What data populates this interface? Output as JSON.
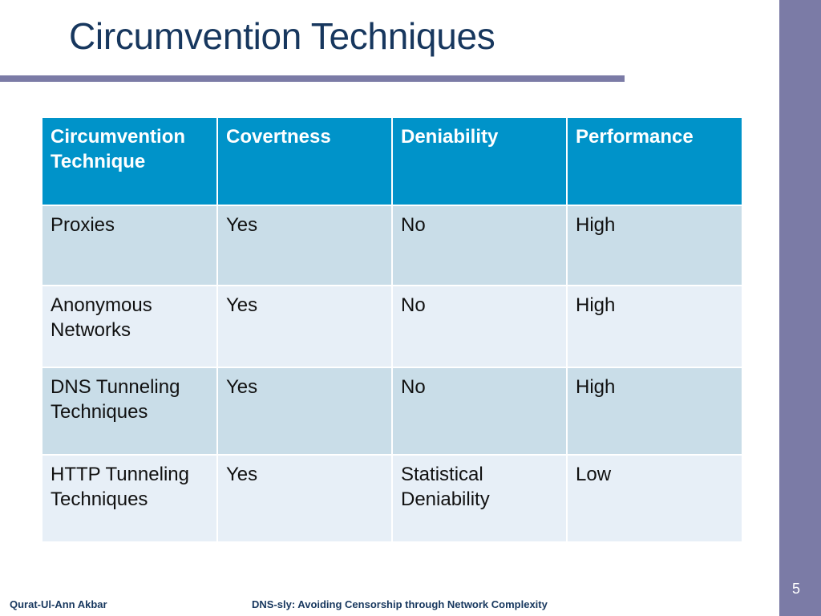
{
  "slide": {
    "title": "Circumvention Techniques",
    "number": "5"
  },
  "table": {
    "headers": [
      "Circumvention Technique",
      "Covertness",
      "Deniability",
      "Performance"
    ],
    "rows": [
      [
        "Proxies",
        "Yes",
        "No",
        "High"
      ],
      [
        "Anonymous Networks",
        "Yes",
        "No",
        "High"
      ],
      [
        "DNS Tunneling Techniques",
        "Yes",
        "No",
        "High"
      ],
      [
        "HTTP Tunneling Techniques",
        "Yes",
        "Statistical Deniability",
        "Low"
      ]
    ]
  },
  "footer": {
    "author": "Qurat-Ul-Ann Akbar",
    "talk": "DNS-sly: Avoiding Censorship through Network Complexity"
  },
  "colors": {
    "title": "#17375e",
    "accent_bar": "#7b7ba6",
    "header_bg": "#0093c9",
    "row_dark": "#c9dde8",
    "row_light": "#e7eff7"
  }
}
